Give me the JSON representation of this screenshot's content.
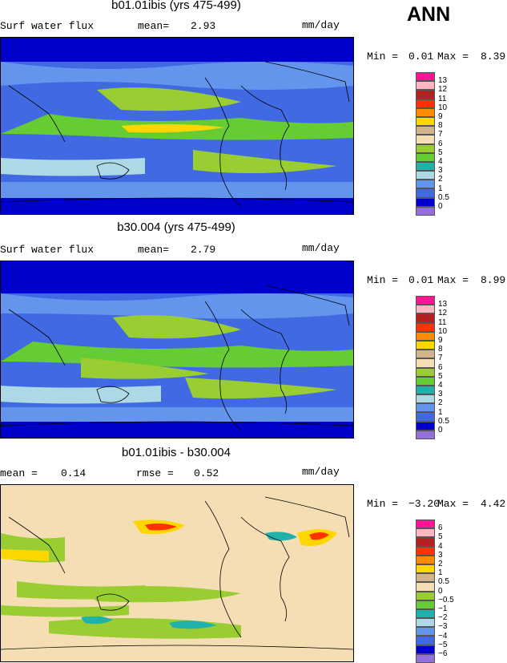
{
  "season": "ANN",
  "panels": [
    {
      "title": "b01.01ibis (yrs 475-499)",
      "left_label": "Surf water flux",
      "mean_label": "mean=",
      "mean_value": "2.93",
      "units": "mm/day",
      "min_label": "Min =",
      "min_value": "0.01",
      "max_label": "Max =",
      "max_value": "8.39",
      "colorbar_labels": [
        "13",
        "12",
        "11",
        "10",
        "9",
        "8",
        "7",
        "6",
        "5",
        "4",
        "3",
        "2",
        "1",
        "0.5",
        "0"
      ],
      "colorbar_colors": [
        "#ff1493",
        "#ffb6c1",
        "#b22222",
        "#ff3300",
        "#ff8c00",
        "#ffd700",
        "#d2b48c",
        "#f5deb3",
        "#9acd32",
        "#66cc33",
        "#20b2aa",
        "#add8e6",
        "#6495ed",
        "#4169e1",
        "#0000cd",
        "#9370db"
      ]
    },
    {
      "title": "b30.004 (yrs 475-499)",
      "left_label": "Surf water flux",
      "mean_label": "mean=",
      "mean_value": "2.79",
      "units": "mm/day",
      "min_label": "Min =",
      "min_value": "0.01",
      "max_label": "Max =",
      "max_value": "8.99",
      "colorbar_labels": [
        "13",
        "12",
        "11",
        "10",
        "9",
        "8",
        "7",
        "6",
        "5",
        "4",
        "3",
        "2",
        "1",
        "0.5",
        "0"
      ],
      "colorbar_colors": [
        "#ff1493",
        "#ffb6c1",
        "#b22222",
        "#ff3300",
        "#ff8c00",
        "#ffd700",
        "#d2b48c",
        "#f5deb3",
        "#9acd32",
        "#66cc33",
        "#20b2aa",
        "#add8e6",
        "#6495ed",
        "#4169e1",
        "#0000cd",
        "#9370db"
      ]
    },
    {
      "title": "b01.01ibis - b30.004",
      "left_label": "mean =",
      "left_value": "0.14",
      "mean_label": "rmse =",
      "mean_value": "0.52",
      "units": "mm/day",
      "min_label": "Min =",
      "min_value": "−3.20",
      "max_label": "Max =",
      "max_value": "4.42",
      "colorbar_labels": [
        "6",
        "5",
        "4",
        "3",
        "2",
        "1",
        "0.5",
        "0",
        "−0.5",
        "−1",
        "−2",
        "−3",
        "−4",
        "−5",
        "−6"
      ],
      "colorbar_colors": [
        "#ff1493",
        "#ffb6c1",
        "#b22222",
        "#ff3300",
        "#ff8c00",
        "#ffd700",
        "#d2b48c",
        "#f5deb3",
        "#9acd32",
        "#66cc33",
        "#20b2aa",
        "#add8e6",
        "#6495ed",
        "#4169e1",
        "#0000cd",
        "#9370db"
      ]
    }
  ]
}
